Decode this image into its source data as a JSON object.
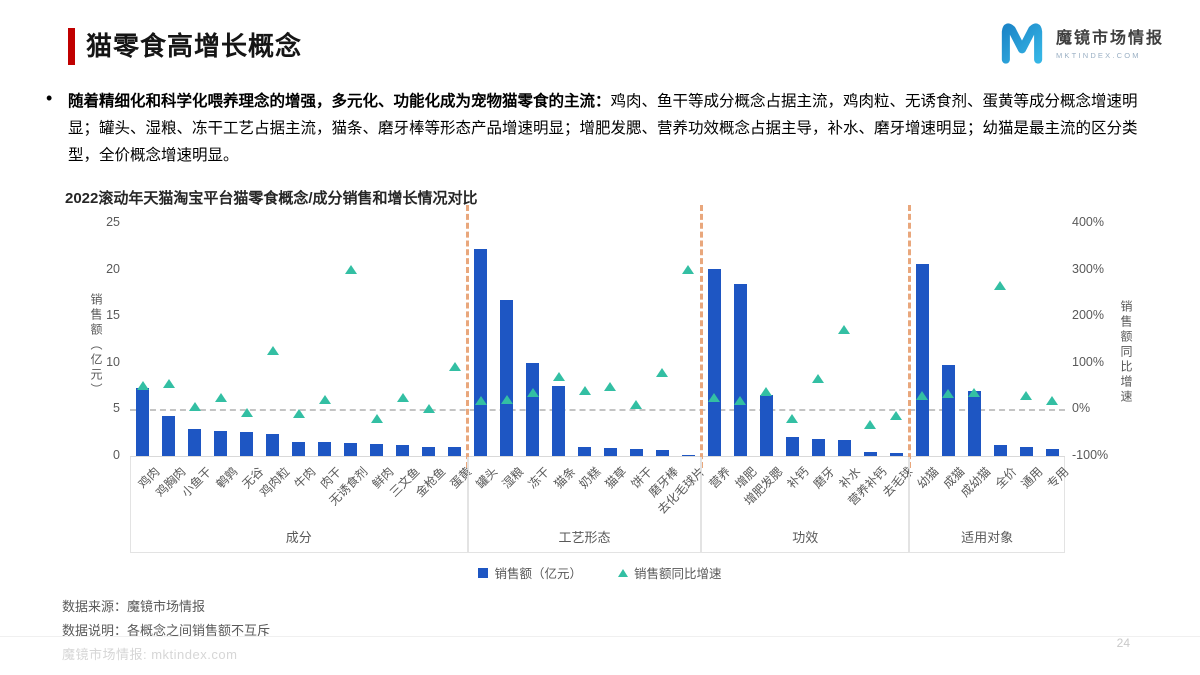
{
  "header": {
    "title": "猫零食高增长概念",
    "logo": {
      "brand": "魔镜市场情报",
      "domain": "MKTINDEX.COM"
    }
  },
  "bullet": {
    "bold": "随着精细化和科学化喂养理念的增强，多元化、功能化成为宠物猫零食的主流：",
    "rest": "鸡肉、鱼干等成分概念占据主流，鸡肉粒、无诱食剂、蛋黄等成分概念增速明显；罐头、湿粮、冻干工艺占据主流，猫条、磨牙棒等形态产品增速明显；增肥发腮、营养功效概念占据主导，补水、磨牙增速明显；幼猫是最主流的区分类型，全价概念增速明显。"
  },
  "chart_data": {
    "type": "bar",
    "title": "2022滚动年天猫淘宝平台猫零食概念/成分销售和增长情况对比",
    "ylabel_left": "销售额（亿元）",
    "ylabel_right": "销售额同比增速",
    "ylim_left": [
      0,
      25
    ],
    "ylim_right_pct": [
      -100,
      400
    ],
    "left_ticks": [
      25,
      20,
      15,
      10,
      5,
      0
    ],
    "right_ticks_pct": [
      400,
      300,
      200,
      100,
      0,
      -100
    ],
    "grid": "dashed zero-growth line at 0%",
    "legend": [
      {
        "label": "销售额（亿元）",
        "marker": "square",
        "color": "#1e56c3"
      },
      {
        "label": "销售额同比增速",
        "marker": "triangle",
        "color": "#33bfa3"
      }
    ],
    "series_meaning": "bars = sales (亿元, left axis); triangles = YoY growth (%, right axis)",
    "groups": [
      {
        "name": "成分",
        "items": [
          {
            "label": "鸡肉",
            "sales": 7.3,
            "growth_pct": 50
          },
          {
            "label": "鸡胸肉",
            "sales": 4.3,
            "growth_pct": 55
          },
          {
            "label": "小鱼干",
            "sales": 2.9,
            "growth_pct": 5
          },
          {
            "label": "鹌鹑",
            "sales": 2.7,
            "growth_pct": 25
          },
          {
            "label": "无谷",
            "sales": 2.6,
            "growth_pct": -8
          },
          {
            "label": "鸡肉粒",
            "sales": 2.4,
            "growth_pct": 125
          },
          {
            "label": "牛肉",
            "sales": 1.5,
            "growth_pct": -10
          },
          {
            "label": "肉干",
            "sales": 1.5,
            "growth_pct": 20
          },
          {
            "label": "无诱食剂",
            "sales": 1.4,
            "growth_pct": 300
          },
          {
            "label": "鲜肉",
            "sales": 1.3,
            "growth_pct": -20
          },
          {
            "label": "三文鱼",
            "sales": 1.2,
            "growth_pct": 25
          },
          {
            "label": "金枪鱼",
            "sales": 1.0,
            "growth_pct": 0
          },
          {
            "label": "蛋黄",
            "sales": 1.0,
            "growth_pct": 90
          }
        ]
      },
      {
        "name": "工艺形态",
        "items": [
          {
            "label": "罐头",
            "sales": 22.2,
            "growth_pct": 18
          },
          {
            "label": "湿粮",
            "sales": 16.7,
            "growth_pct": 20
          },
          {
            "label": "冻干",
            "sales": 10.0,
            "growth_pct": 35
          },
          {
            "label": "猫条",
            "sales": 7.5,
            "growth_pct": 70
          },
          {
            "label": "奶糕",
            "sales": 1.0,
            "growth_pct": 40
          },
          {
            "label": "猫草",
            "sales": 0.9,
            "growth_pct": 48
          },
          {
            "label": "饼干",
            "sales": 0.8,
            "growth_pct": 10
          },
          {
            "label": "磨牙棒",
            "sales": 0.6,
            "growth_pct": 78
          },
          {
            "label": "去化毛球片",
            "sales": 0.1,
            "growth_pct": 300
          }
        ]
      },
      {
        "name": "功效",
        "items": [
          {
            "label": "营养",
            "sales": 20.1,
            "growth_pct": 25
          },
          {
            "label": "增肥",
            "sales": 18.5,
            "growth_pct": 18
          },
          {
            "label": "增肥发腮",
            "sales": 6.5,
            "growth_pct": 37
          },
          {
            "label": "补钙",
            "sales": 2.0,
            "growth_pct": -20
          },
          {
            "label": "磨牙",
            "sales": 1.8,
            "growth_pct": 65
          },
          {
            "label": "补水",
            "sales": 1.7,
            "growth_pct": 170
          },
          {
            "label": "营养补钙",
            "sales": 0.4,
            "growth_pct": -33
          },
          {
            "label": "去毛球",
            "sales": 0.3,
            "growth_pct": -15
          }
        ]
      },
      {
        "name": "适用对象",
        "items": [
          {
            "label": "幼猫",
            "sales": 20.6,
            "growth_pct": 28
          },
          {
            "label": "成猫",
            "sales": 9.8,
            "growth_pct": 32
          },
          {
            "label": "成幼猫",
            "sales": 7.0,
            "growth_pct": 35
          },
          {
            "label": "全价",
            "sales": 1.2,
            "growth_pct": 265
          },
          {
            "label": "通用",
            "sales": 1.0,
            "growth_pct": 28
          },
          {
            "label": "专用",
            "sales": 0.8,
            "growth_pct": 17
          }
        ]
      }
    ]
  },
  "footer": {
    "lines": [
      "数据来源：魔镜市场情报",
      "数据说明：各概念之间销售额不互斥"
    ]
  },
  "bottombar": {
    "text": "魔镜市场情报: mktindex.com",
    "page": "24"
  },
  "colors": {
    "bar": "#1e56c3",
    "triangle": "#33bfa3",
    "separator": "#e9a77c",
    "accent_red": "#c00000",
    "logo_blue_light": "#35b5e5",
    "logo_blue_dark": "#1c86c8"
  }
}
